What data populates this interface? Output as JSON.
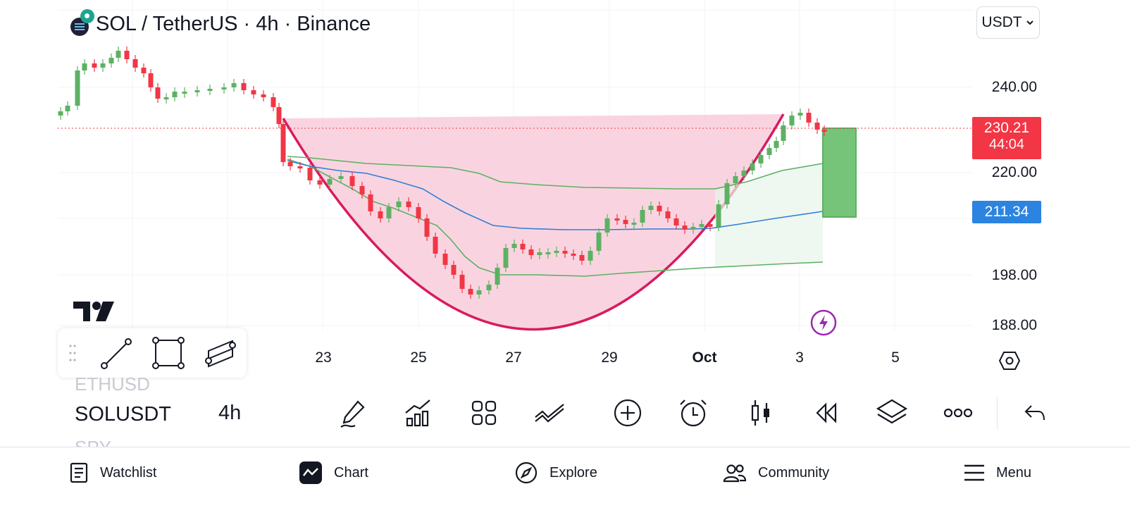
{
  "header": {
    "title": "SOL / TetherUS · 4h · Binance",
    "currency": "USDT"
  },
  "price_axis": {
    "labels": [
      "240.00",
      "220.00",
      "198.00",
      "188.00"
    ],
    "current_price": "230.21",
    "countdown": "44:04",
    "ma_value": "211.34",
    "colors": {
      "down": "#f23645",
      "up": "#5db163",
      "ma": "#2962ff"
    }
  },
  "time_axis": {
    "labels": [
      "23",
      "25",
      "27",
      "29",
      "Oct",
      "3",
      "5"
    ]
  },
  "chart_data": {
    "type": "candlestick",
    "symbol": "SOL / TetherUS",
    "interval": "4h",
    "exchange": "Binance",
    "y_ticks": [
      240.0,
      220.0,
      198.0,
      188.0
    ],
    "x_ticks": [
      "23",
      "25",
      "27",
      "29",
      "Oct",
      "3",
      "5"
    ],
    "last_price": 230.21,
    "ma_last": 211.34,
    "overlays": [
      "cup pattern",
      "moving average",
      "bands",
      "long position"
    ]
  },
  "toolbar": {
    "symbols": {
      "previous": "ETHUSD",
      "current": "SOLUSDT",
      "next": "SPY"
    },
    "interval": "4h"
  },
  "nav": {
    "watchlist": "Watchlist",
    "chart": "Chart",
    "explore": "Explore",
    "community": "Community",
    "menu": "Menu"
  }
}
